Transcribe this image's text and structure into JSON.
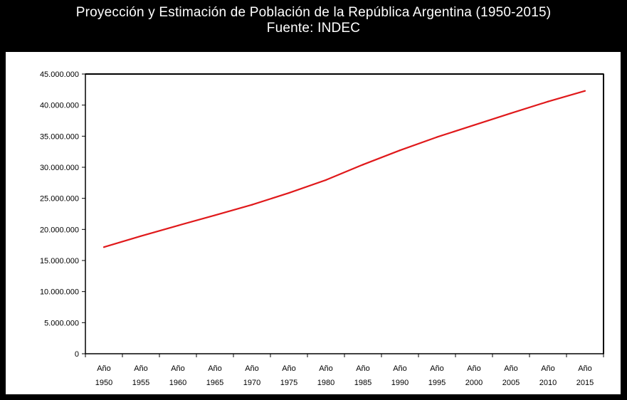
{
  "title": "Proyección y Estimación de Población de la República Argentina (1950-2015)",
  "subtitle": "Fuente: INDEC",
  "colors": {
    "background": "#000000",
    "panel": "#ffffff",
    "line": "#e0191b",
    "text": "#ffffff"
  },
  "chart_data": {
    "type": "line",
    "title": "Proyección y Estimación de Población de la República Argentina (1950-2015)",
    "subtitle": "Fuente: INDEC",
    "xlabel": "",
    "ylabel": "",
    "x_prefix": "Año",
    "categories": [
      "1950",
      "1955",
      "1960",
      "1965",
      "1970",
      "1975",
      "1980",
      "1985",
      "1990",
      "1995",
      "2000",
      "2005",
      "2010",
      "2015"
    ],
    "series": [
      {
        "values": [
          17150000,
          18930000,
          20620000,
          22280000,
          23960000,
          25870000,
          27950000,
          30420000,
          32730000,
          34850000,
          36780000,
          38690000,
          40570000,
          42290000
        ]
      }
    ],
    "y_ticks": [
      0,
      5000000,
      10000000,
      15000000,
      20000000,
      25000000,
      30000000,
      35000000,
      40000000,
      45000000
    ],
    "y_tick_labels": [
      "0",
      "5.000.000",
      "10.000.000",
      "15.000.000",
      "20.000.000",
      "25.000.000",
      "30.000.000",
      "35.000.000",
      "40.000.000",
      "45.000.000"
    ],
    "ylim": [
      0,
      45000000
    ],
    "grid": false,
    "legend": "none"
  }
}
